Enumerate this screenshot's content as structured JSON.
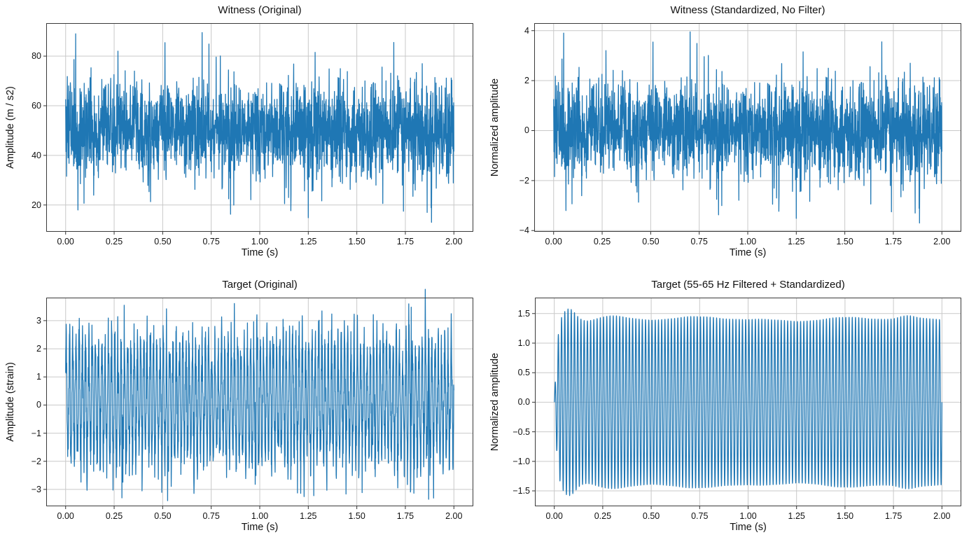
{
  "figure": {
    "background": "#ffffff",
    "line_color": "#1f77b4",
    "grid_color": "#c9c9c9",
    "spine_color": "#3a3a3a",
    "tick_color": "#333333",
    "text_color": "#111111"
  },
  "chart_data": [
    {
      "type": "line",
      "title": "Witness (Original)",
      "xlabel": "Time (s)",
      "ylabel": "Amplitude (m / s2)",
      "xlim": [
        -0.1,
        2.1
      ],
      "ylim": [
        9.2,
        93.3
      ],
      "xticks": [
        0,
        0.25,
        0.5,
        0.75,
        1.0,
        1.25,
        1.5,
        1.75,
        2.0
      ],
      "xtick_labels": [
        "0.00",
        "0.25",
        "0.50",
        "0.75",
        "1.00",
        "1.25",
        "1.50",
        "1.75",
        "2.00"
      ],
      "yticks": [
        20,
        40,
        60,
        80
      ],
      "ytick_labels": [
        "20",
        "40",
        "60",
        "80"
      ],
      "grid": true,
      "legend": false,
      "line_color": "#1f77b4",
      "signal": {
        "kind": "gaussian_noise",
        "mean": 50,
        "std": 10,
        "fs": 1024,
        "duration": 2,
        "seed": 77,
        "outliers_sigma": [
          [
            0.052,
            3.9
          ],
          [
            0.703,
            3.95
          ],
          [
            0.27,
            3.2
          ],
          [
            1.285,
            3.15
          ],
          [
            1.69,
            3.55
          ],
          [
            0.063,
            -3.2
          ],
          [
            1.16,
            -3.23
          ],
          [
            1.74,
            -3.25
          ],
          [
            1.862,
            -3.3
          ],
          [
            1.885,
            -3.7
          ]
        ]
      },
      "summary": {
        "approx_mean": 50,
        "approx_std": 10,
        "observed_min": 13,
        "observed_max": 89.5
      }
    },
    {
      "type": "line",
      "title": "Witness (Standardized, No Filter)",
      "xlabel": "Time (s)",
      "ylabel": "Normalized amplitude",
      "xlim": [
        -0.1,
        2.1
      ],
      "ylim": [
        -4.05,
        4.3
      ],
      "xticks": [
        0,
        0.25,
        0.5,
        0.75,
        1.0,
        1.25,
        1.5,
        1.75,
        2.0
      ],
      "xtick_labels": [
        "0.00",
        "0.25",
        "0.50",
        "0.75",
        "1.00",
        "1.25",
        "1.50",
        "1.75",
        "2.00"
      ],
      "yticks": [
        -4,
        -2,
        0,
        2,
        4
      ],
      "ytick_labels": [
        "−4",
        "−2",
        "0",
        "2",
        "4"
      ],
      "grid": true,
      "legend": false,
      "line_color": "#1f77b4",
      "signal": {
        "kind": "gaussian_noise",
        "mean": 0,
        "std": 1,
        "fs": 1024,
        "duration": 2,
        "seed": 77,
        "outliers_sigma": [
          [
            0.052,
            3.9
          ],
          [
            0.703,
            3.95
          ],
          [
            0.27,
            3.2
          ],
          [
            1.285,
            3.15
          ],
          [
            1.69,
            3.55
          ],
          [
            0.063,
            -3.2
          ],
          [
            1.16,
            -3.23
          ],
          [
            1.74,
            -3.25
          ],
          [
            1.862,
            -3.3
          ],
          [
            1.885,
            -3.7
          ]
        ]
      },
      "summary": {
        "approx_mean": 0,
        "approx_std": 1,
        "observed_min": -3.7,
        "observed_max": 3.95
      }
    },
    {
      "type": "line",
      "title": "Target (Original)",
      "xlabel": "Time (s)",
      "ylabel": "Amplitude (strain)",
      "xlim": [
        -0.1,
        2.1
      ],
      "ylim": [
        -3.6,
        3.82
      ],
      "xticks": [
        0,
        0.25,
        0.5,
        0.75,
        1.0,
        1.25,
        1.5,
        1.75,
        2.0
      ],
      "xtick_labels": [
        "0.00",
        "0.25",
        "0.50",
        "0.75",
        "1.00",
        "1.25",
        "1.50",
        "1.75",
        "2.00"
      ],
      "yticks": [
        -3,
        -2,
        -1,
        0,
        1,
        2,
        3
      ],
      "ytick_labels": [
        "−3",
        "−2",
        "−1",
        "0",
        "1",
        "2",
        "3"
      ],
      "grid": true,
      "legend": false,
      "line_color": "#1f77b4",
      "signal": {
        "kind": "sine_plus_noise",
        "offset": 0.18,
        "amp": 2.05,
        "freq": 60,
        "phase": 0.4,
        "noise_std": 0.55,
        "fs": 1024,
        "duration": 2,
        "seed": 123,
        "outliers_abs": [
          [
            0.302,
            3.55
          ],
          [
            0.52,
            3.42
          ],
          [
            1.78,
            3.48
          ],
          [
            0.29,
            -3.3
          ],
          [
            0.525,
            -3.4
          ],
          [
            1.87,
            -3.35
          ]
        ]
      },
      "summary": {
        "carrier_freq_hz": 60,
        "observed_min": -3.4,
        "observed_max": 3.55
      }
    },
    {
      "type": "line",
      "title": "Target (55-65 Hz Filtered + Standardized)",
      "xlabel": "Time (s)",
      "ylabel": "Normalized amplitude",
      "xlim": [
        -0.1,
        2.1
      ],
      "ylim": [
        -1.76,
        1.77
      ],
      "xticks": [
        0,
        0.25,
        0.5,
        0.75,
        1.0,
        1.25,
        1.5,
        1.75,
        2.0
      ],
      "xtick_labels": [
        "0.00",
        "0.25",
        "0.50",
        "0.75",
        "1.00",
        "1.25",
        "1.50",
        "1.75",
        "2.00"
      ],
      "yticks": [
        -1.5,
        -1.0,
        -0.5,
        0.0,
        0.5,
        1.0,
        1.5
      ],
      "ytick_labels": [
        "−1.5",
        "−1.0",
        "−0.5",
        "0.0",
        "0.5",
        "1.0",
        "1.5"
      ],
      "grid": true,
      "legend": false,
      "line_color": "#1f77b4",
      "signal": {
        "kind": "enveloped_sine",
        "amp": 1.414,
        "freq": 60,
        "phase": 0,
        "fs": 2048,
        "duration": 2,
        "ramp_tau": 0.02,
        "bumps": [
          [
            0.078,
            0.042,
            0.105
          ],
          [
            0.17,
            0.055,
            -0.035
          ],
          [
            0.3,
            0.08,
            0.02
          ],
          [
            1.82,
            0.06,
            0.035
          ]
        ],
        "wobble": [
          [
            1.35,
            0.015,
            1.0
          ],
          [
            2.6,
            0.012,
            2.4
          ],
          [
            0.55,
            0.01,
            0.3
          ]
        ]
      },
      "summary": {
        "carrier_freq_hz": 60,
        "envelope_level": 1.45,
        "observed_min": -1.57,
        "observed_max": 1.58
      }
    }
  ]
}
